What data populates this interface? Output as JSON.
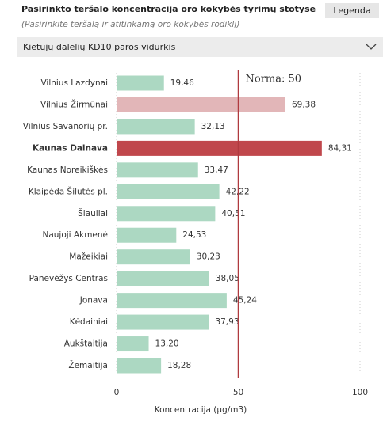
{
  "ui": {
    "legend_button": "Legenda",
    "dropdown": "Kietųjų dalelių KD10 paros vidurkis"
  },
  "chart_data": {
    "type": "hbar",
    "title": "Pasirinkto teršalo koncentracija oro kokybės tyrimų stotyse",
    "subtitle": "(Pasirinkite teršalą ir atitinkamą oro kokybės rodiklį)",
    "x_label": "Koncentracija (µg/m3)",
    "categories": [
      "Vilnius Lazdynai",
      "Vilnius Žirmūnai",
      "Vilnius Savanorių pr.",
      "Kaunas Dainava",
      "Kaunas Noreikiškės",
      "Klaipėda Šilutės pl.",
      "Šiauliai",
      "Naujoji Akmenė",
      "Mažeikiai",
      "Panevėžys Centras",
      "Jonava",
      "Kėdainiai",
      "Aukštaitija",
      "Žemaitija"
    ],
    "values": [
      19.46,
      69.38,
      32.13,
      84.31,
      33.47,
      42.22,
      40.51,
      24.53,
      30.23,
      38.05,
      45.24,
      37.93,
      13.2,
      18.28
    ],
    "value_labels": [
      "19,46",
      "69,38",
      "32,13",
      "84,31",
      "33,47",
      "42,22",
      "40,51",
      "24,53",
      "30,23",
      "38,05",
      "45,24",
      "37,93",
      "13,20",
      "18,28"
    ],
    "colors": [
      "#acd8c2",
      "#e2b6b8",
      "#acd8c2",
      "#c0474c",
      "#acd8c2",
      "#acd8c2",
      "#acd8c2",
      "#acd8c2",
      "#acd8c2",
      "#acd8c2",
      "#acd8c2",
      "#acd8c2",
      "#acd8c2",
      "#acd8c2"
    ],
    "highlight_index": 3,
    "xlim": [
      0,
      100
    ],
    "xticks": [
      0,
      50,
      100
    ],
    "grid": true,
    "reference_line": {
      "value": 50,
      "label": "Norma: 50",
      "color": "#b03a3f"
    }
  }
}
